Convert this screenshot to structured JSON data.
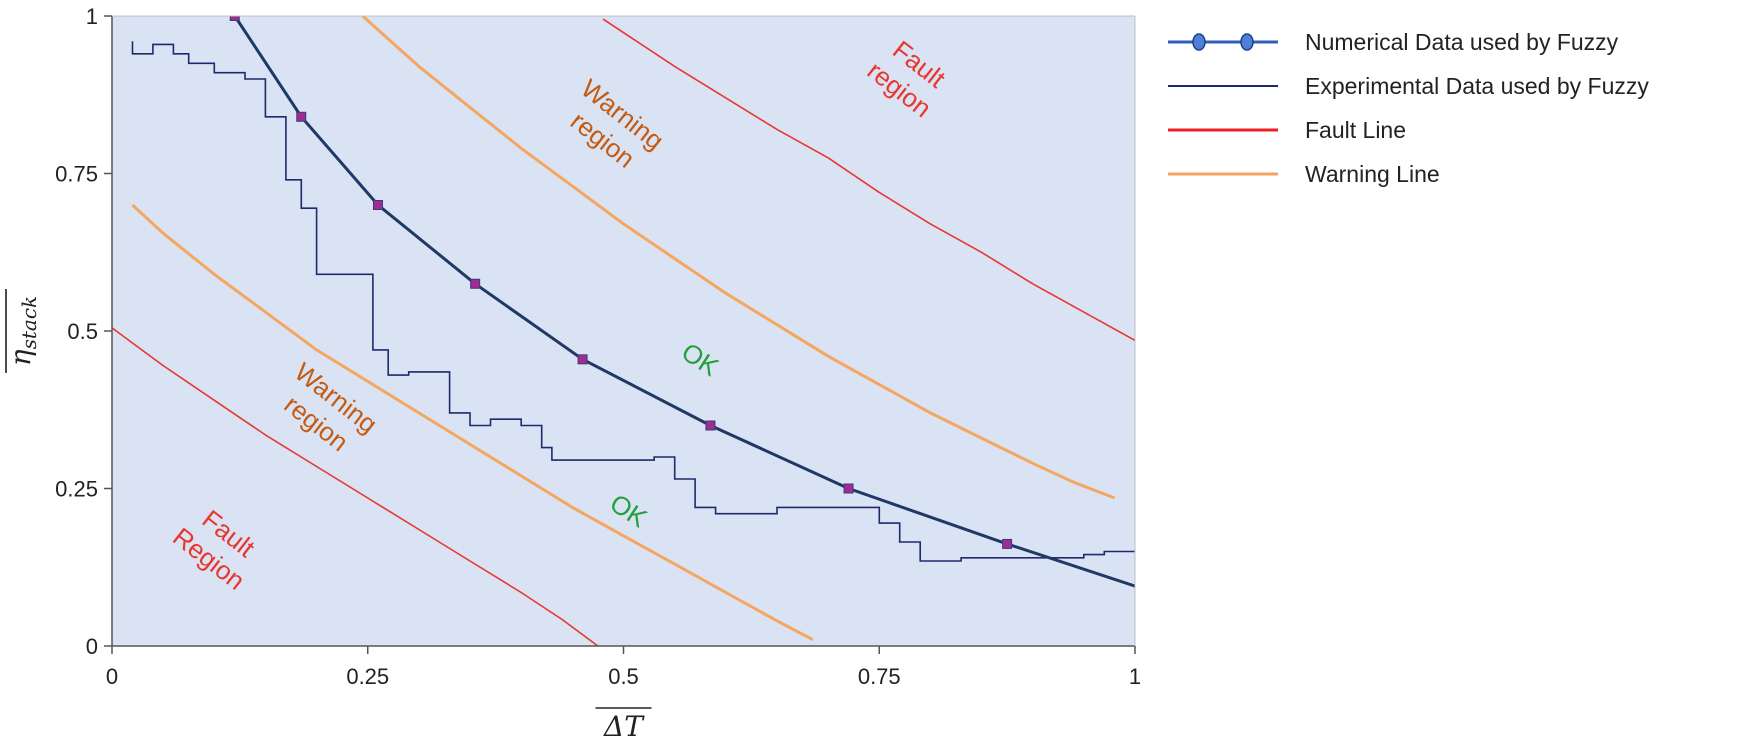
{
  "chart_data": {
    "type": "line",
    "xlabel": "ΔT",
    "ylabel": "η",
    "ylabel_subscript": "stack",
    "xlim": [
      0,
      1
    ],
    "ylim": [
      0,
      1
    ],
    "xticks": [
      0,
      0.25,
      0.5,
      0.75,
      1
    ],
    "yticks": [
      0,
      0.25,
      0.5,
      0.75,
      1
    ],
    "xtick_labels": [
      "0",
      "0.25",
      "0.5",
      "0.75",
      "1"
    ],
    "ytick_labels": [
      "0",
      "0.25",
      "0.5",
      "0.75",
      "1"
    ],
    "grid": false,
    "background": "#dae3f3",
    "legend_position": "right",
    "series": [
      {
        "name": "Numerical Data used by Fuzzy",
        "color": "#1f3864",
        "marker_color": "#a02b93",
        "legend_color": "#2e5fb8",
        "x": [
          0.12,
          0.185,
          0.26,
          0.355,
          0.46,
          0.585,
          0.72,
          0.875
        ],
        "y": [
          1.0,
          0.84,
          0.7,
          0.575,
          0.455,
          0.35,
          0.25,
          0.162
        ],
        "x_tail": 1.0,
        "y_tail": 0.095
      },
      {
        "name": "Experimental Data used by Fuzzy",
        "color": "#1f2a6e",
        "x": [
          0.02,
          0.02,
          0.04,
          0.04,
          0.06,
          0.06,
          0.075,
          0.075,
          0.1,
          0.1,
          0.13,
          0.13,
          0.15,
          0.15,
          0.17,
          0.17,
          0.185,
          0.185,
          0.2,
          0.2,
          0.255,
          0.255,
          0.27,
          0.27,
          0.29,
          0.29,
          0.33,
          0.33,
          0.35,
          0.35,
          0.37,
          0.37,
          0.4,
          0.4,
          0.42,
          0.42,
          0.43,
          0.43,
          0.47,
          0.47,
          0.53,
          0.53,
          0.55,
          0.55,
          0.57,
          0.57,
          0.59,
          0.59,
          0.62,
          0.62,
          0.65,
          0.65,
          0.74,
          0.74,
          0.75,
          0.75,
          0.77,
          0.77,
          0.79,
          0.79,
          0.83,
          0.83,
          0.86,
          0.86,
          0.95,
          0.95,
          0.97,
          0.97,
          1.0
        ],
        "y": [
          0.96,
          0.94,
          0.94,
          0.955,
          0.955,
          0.94,
          0.94,
          0.925,
          0.925,
          0.91,
          0.91,
          0.9,
          0.9,
          0.84,
          0.84,
          0.74,
          0.74,
          0.695,
          0.695,
          0.59,
          0.59,
          0.47,
          0.47,
          0.43,
          0.43,
          0.435,
          0.435,
          0.37,
          0.37,
          0.35,
          0.35,
          0.36,
          0.36,
          0.35,
          0.35,
          0.315,
          0.315,
          0.295,
          0.295,
          0.295,
          0.295,
          0.3,
          0.3,
          0.265,
          0.265,
          0.22,
          0.22,
          0.21,
          0.21,
          0.21,
          0.21,
          0.22,
          0.22,
          0.22,
          0.22,
          0.195,
          0.195,
          0.165,
          0.165,
          0.135,
          0.135,
          0.14,
          0.14,
          0.14,
          0.14,
          0.145,
          0.145,
          0.15,
          0.15
        ]
      },
      {
        "name": "Fault Line",
        "color": "#e8372f",
        "legend_color": "#ee1c24",
        "segments": [
          {
            "x": [
              0.0,
              0.05,
              0.1,
              0.15,
              0.2,
              0.25,
              0.3,
              0.35,
              0.4,
              0.44,
              0.475
            ],
            "y": [
              0.505,
              0.445,
              0.39,
              0.335,
              0.285,
              0.235,
              0.185,
              0.135,
              0.085,
              0.042,
              0.0
            ]
          },
          {
            "x": [
              0.48,
              0.55,
              0.6,
              0.65,
              0.7,
              0.75,
              0.8,
              0.85,
              0.9,
              0.95,
              1.0
            ],
            "y": [
              0.995,
              0.92,
              0.87,
              0.82,
              0.775,
              0.72,
              0.67,
              0.625,
              0.575,
              0.53,
              0.485
            ]
          }
        ]
      },
      {
        "name": "Warning Line",
        "color": "#f5a660",
        "legend_color": "#f3a462",
        "segments": [
          {
            "x": [
              0.02,
              0.05,
              0.1,
              0.15,
              0.2,
              0.25,
              0.3,
              0.35,
              0.4,
              0.45,
              0.5,
              0.55,
              0.6,
              0.65,
              0.685
            ],
            "y": [
              0.7,
              0.655,
              0.59,
              0.53,
              0.47,
              0.42,
              0.37,
              0.32,
              0.27,
              0.22,
              0.175,
              0.13,
              0.085,
              0.04,
              0.01
            ]
          },
          {
            "x": [
              0.245,
              0.3,
              0.35,
              0.4,
              0.45,
              0.5,
              0.55,
              0.6,
              0.65,
              0.7,
              0.75,
              0.8,
              0.85,
              0.9,
              0.94,
              0.98
            ],
            "y": [
              1.0,
              0.92,
              0.855,
              0.79,
              0.73,
              0.67,
              0.615,
              0.56,
              0.51,
              0.46,
              0.415,
              0.37,
              0.33,
              0.29,
              0.26,
              0.235
            ]
          }
        ]
      }
    ],
    "annotations": [
      {
        "text": "Fault",
        "text2": "region",
        "color": "#e8372f",
        "x": 0.78,
        "y": 0.905,
        "rotation": 38
      },
      {
        "text": "Warning",
        "text2": "region",
        "color": "#c55a11",
        "x": 0.49,
        "y": 0.825,
        "rotation": 38
      },
      {
        "text": "OK",
        "color": "#22a13a",
        "x": 0.575,
        "y": 0.455,
        "rotation": 33
      },
      {
        "text": "Warning",
        "text2": "region",
        "color": "#c55a11",
        "x": 0.21,
        "y": 0.375,
        "rotation": 38
      },
      {
        "text": "OK",
        "color": "#22a13a",
        "x": 0.505,
        "y": 0.215,
        "rotation": 33
      },
      {
        "text": "Fault",
        "text2": "Region",
        "color": "#e8372f",
        "x": 0.105,
        "y": 0.16,
        "rotation": 38
      }
    ]
  }
}
